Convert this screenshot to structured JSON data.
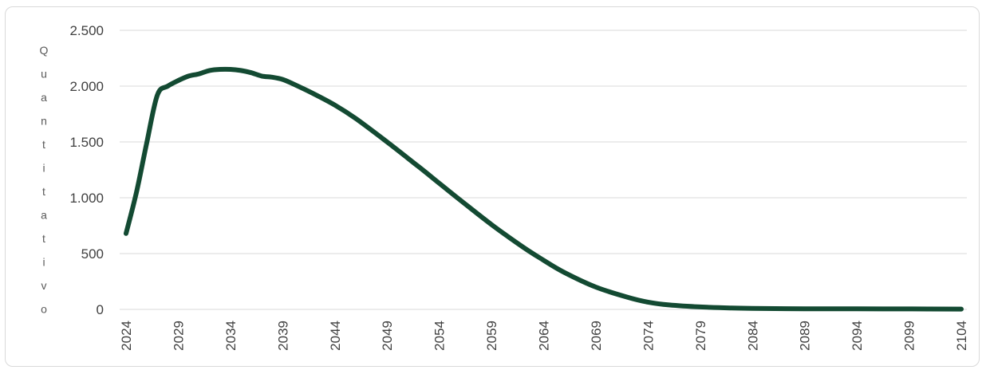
{
  "chart_data": {
    "type": "line",
    "title": "",
    "xlabel": "",
    "ylabel": "Quantitativo",
    "grid": true,
    "legend": "none",
    "line_color": "#134a32",
    "ylim": [
      0,
      2500
    ],
    "yticks": [
      0,
      500,
      1000,
      1500,
      2000,
      2500
    ],
    "ytick_labels": [
      "0",
      "500",
      "1.000",
      "1.500",
      "2.000",
      "2.500"
    ],
    "xlim": [
      2024,
      2104
    ],
    "xticks": [
      2024,
      2029,
      2034,
      2039,
      2044,
      2049,
      2054,
      2059,
      2064,
      2069,
      2074,
      2079,
      2084,
      2089,
      2094,
      2099,
      2104
    ],
    "series": [
      {
        "x": [
          2024,
          2025,
          2026,
          2027,
          2028,
          2029,
          2030,
          2031,
          2032,
          2033,
          2034,
          2035,
          2036,
          2037,
          2038,
          2039,
          2040,
          2042,
          2044,
          2046,
          2049,
          2052,
          2054,
          2056,
          2059,
          2062,
          2064,
          2066,
          2069,
          2072,
          2074,
          2076,
          2079,
          2082,
          2084,
          2089,
          2094,
          2099,
          2104
        ],
        "values": [
          680,
          1050,
          1500,
          1920,
          2000,
          2050,
          2090,
          2110,
          2140,
          2150,
          2150,
          2140,
          2120,
          2090,
          2080,
          2060,
          2020,
          1930,
          1830,
          1710,
          1500,
          1280,
          1130,
          980,
          760,
          560,
          440,
          330,
          200,
          110,
          65,
          40,
          22,
          12,
          9,
          6,
          5,
          4,
          3
        ]
      }
    ]
  }
}
